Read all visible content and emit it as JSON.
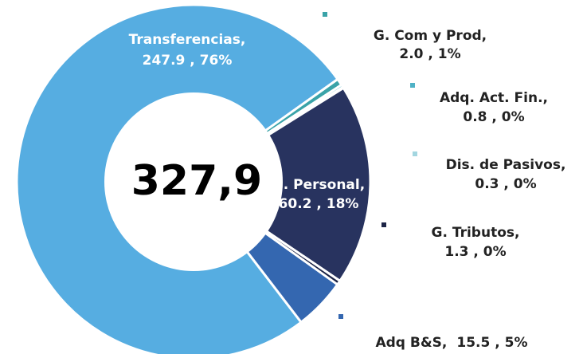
{
  "chart_data": {
    "type": "donut",
    "center_label": "327,9",
    "categories": [
      "Transferencias,",
      "G. Com y Prod,",
      "Adq. Act. Fin.,",
      "Dis. de Pasivos,",
      "G. Personal,",
      "G. Tributos,",
      "Adq B&S,"
    ],
    "values": [
      247.9,
      2.0,
      0.8,
      0.3,
      60.2,
      1.3,
      15.5
    ],
    "value_labels": [
      "247.9 , 76%",
      "2.0 , 1%",
      "0.8 , 0%",
      "0.3 , 0%",
      "60.2 , 18%",
      "1.3 , 0%",
      "15.5 , 5%"
    ],
    "colors": [
      "#56ade1",
      "#3aa3a8",
      "#4fb2c6",
      "#a3d6e0",
      "#28335f",
      "#1c2446",
      "#3467b0"
    ]
  }
}
